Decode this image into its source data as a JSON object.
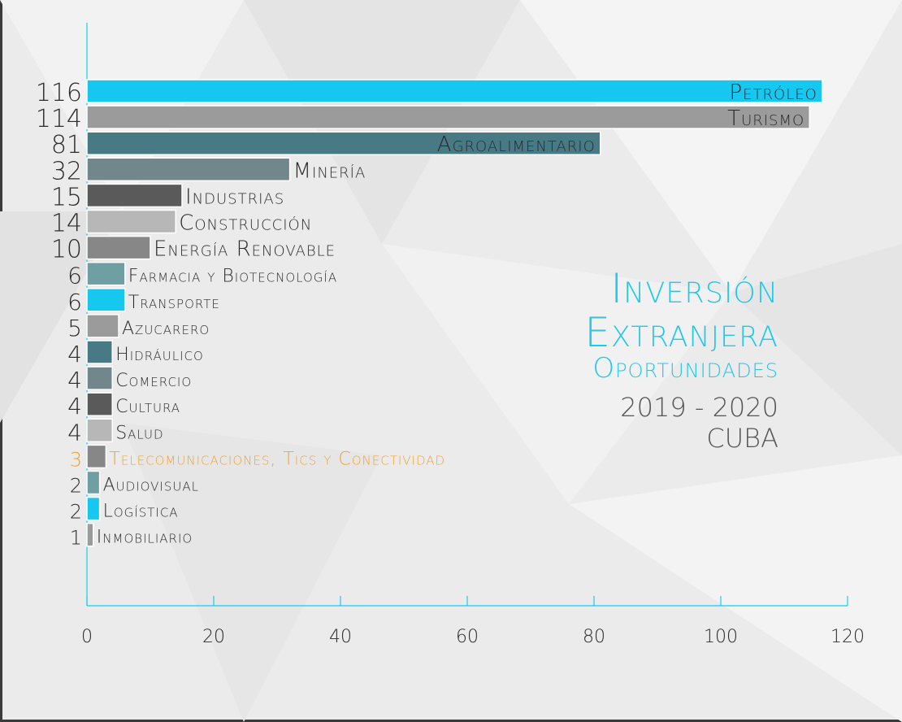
{
  "colors": {
    "cyan": "#16c7ef",
    "gray": "#9b9b9b",
    "teal": "#477a84",
    "slate": "#71878b",
    "dark": "#5a5a5a",
    "light": "#b7b7b7",
    "mid": "#878787",
    "seafoam": "#6f9fa3",
    "orange": "#f3a22d",
    "axis": "#1ec9ec",
    "text": "#2b2b2b",
    "title": "#1ec9ec",
    "subtitle": "#555555"
  },
  "title": {
    "line1": "Inversión",
    "line2": "Extranjera",
    "line3": "Oportunidades",
    "years": "2019 - 2020",
    "country": "CUBA"
  },
  "chart_data": {
    "type": "bar",
    "orientation": "horizontal",
    "title": "Inversión Extranjera Oportunidades 2019 - 2020 CUBA",
    "xlabel": "",
    "ylabel": "",
    "xlim": [
      0,
      120
    ],
    "xticks": [
      0,
      20,
      40,
      60,
      80,
      100,
      120
    ],
    "grid": false,
    "categories": [
      "Petróleo",
      "Turismo",
      "Agroalimentario",
      "Minería",
      "Industrias",
      "Construcción",
      "Energía Renovable",
      "Farmacia y Biotecnología",
      "Transporte",
      "Azucarero",
      "Hidráulico",
      "Comercio",
      "Cultura",
      "Salud",
      "Telecomunicaciones, Tics y Conectividad",
      "Audiovisual",
      "Logística",
      "Inmobiliario"
    ],
    "values": [
      116,
      114,
      81,
      32,
      15,
      14,
      10,
      6,
      6,
      5,
      4,
      4,
      4,
      4,
      3,
      2,
      2,
      1
    ],
    "bar_colors": [
      "cyan",
      "gray",
      "teal",
      "slate",
      "dark",
      "light",
      "mid",
      "seafoam",
      "cyan",
      "gray",
      "teal",
      "slate",
      "dark",
      "light",
      "mid",
      "seafoam",
      "cyan",
      "gray"
    ],
    "label_inside_bar": [
      true,
      true,
      true,
      false,
      false,
      false,
      false,
      false,
      false,
      false,
      false,
      false,
      false,
      false,
      false,
      false,
      false,
      false
    ],
    "highlight": {
      "category": "Telecomunicaciones, Tics y Conectividad",
      "color": "orange"
    }
  }
}
